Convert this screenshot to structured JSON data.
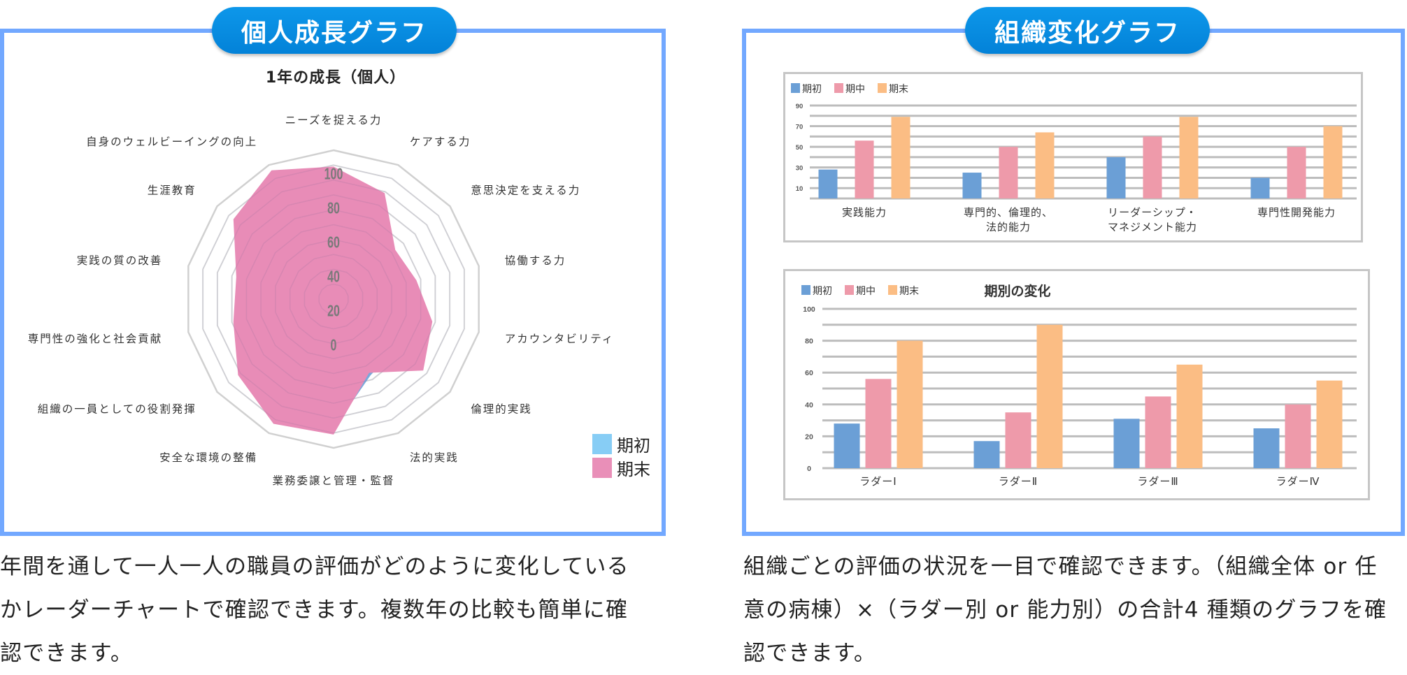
{
  "left_panel": {
    "heading": "個人成長グラフ",
    "caption_lines": [
      "年間を通して一人一人の職員の評価がどのように変化している",
      "かレーダーチャートで確認できます。複数年の比較も簡単に確",
      "認できます。"
    ]
  },
  "right_panel": {
    "heading": "組織変化グラフ",
    "caption_lines": [
      "組織ごとの評価の状況を一目で確認できます。（組織全体 or 任",
      "意の病棟）×（ラダー別 or 能力別）の合計4 種類のグラフを確",
      "認できます。"
    ]
  },
  "chart_data": [
    {
      "type": "radar",
      "title": "1年の成長（個人）",
      "axes": [
        "ニーズを捉える力",
        "ケアする力",
        "意思決定を支える力",
        "協働する力",
        "アカウンタビリティ",
        "倫理的実践",
        "法的実践",
        "業務委譲と管理・監督",
        "安全な環境の整備",
        "組織の一員としての役割発揮",
        "専門性の強化と社会貢献",
        "実践の質の改善",
        "生涯教育",
        "自身のウェルビーイングの向上"
      ],
      "rlim": [
        0,
        100
      ],
      "ticks": [
        0,
        20,
        40,
        60,
        80,
        100
      ],
      "legend_position": "bottom-right",
      "series": [
        {
          "name": "期初",
          "color": "#7aa8da",
          "legend_color": "#87cdf5",
          "values": [
            69,
            62,
            30,
            55,
            60,
            53,
            57,
            87,
            85,
            76,
            49,
            65,
            79,
            90
          ]
        },
        {
          "name": "期末",
          "color": "#e88cb7",
          "legend_color": "#e98fb8",
          "values": [
            89,
            79,
            53,
            57,
            68,
            77,
            55,
            91,
            93,
            82,
            69,
            67,
            86,
            96
          ]
        }
      ]
    },
    {
      "type": "bar",
      "title": "",
      "categories": [
        [
          "実践能力"
        ],
        [
          "専門的、倫理的、",
          "法的能力"
        ],
        [
          "リーダーシップ・",
          "マネジメント能力"
        ],
        [
          "専門性開発能力"
        ]
      ],
      "ylim": [
        0,
        90
      ],
      "yticks": [
        10,
        30,
        50,
        70,
        90
      ],
      "grid": true,
      "legend_position": "top-left",
      "series": [
        {
          "name": "期初",
          "color": "#6b9fd6",
          "values": [
            28,
            25,
            40,
            20
          ]
        },
        {
          "name": "期中",
          "color": "#ee9aaa",
          "values": [
            56,
            50,
            60,
            50
          ]
        },
        {
          "name": "期末",
          "color": "#fbbd84",
          "values": [
            79,
            64,
            79,
            70
          ]
        }
      ]
    },
    {
      "type": "bar",
      "title": "期別の変化",
      "categories": [
        [
          "ラダーⅠ"
        ],
        [
          "ラダーⅡ"
        ],
        [
          "ラダーⅢ"
        ],
        [
          "ラダーⅣ"
        ]
      ],
      "ylim": [
        0,
        100
      ],
      "yticks": [
        0,
        20,
        40,
        60,
        80,
        100
      ],
      "grid": true,
      "legend_position": "top-left",
      "series": [
        {
          "name": "期初",
          "color": "#6b9fd6",
          "values": [
            28,
            17,
            31,
            25
          ]
        },
        {
          "name": "期中",
          "color": "#ee9aaa",
          "values": [
            56,
            35,
            45,
            40
          ]
        },
        {
          "name": "期末",
          "color": "#fbbd84",
          "values": [
            80,
            90,
            65,
            55
          ]
        }
      ]
    }
  ]
}
